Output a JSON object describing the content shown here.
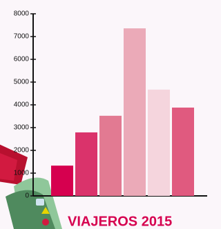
{
  "chart_data": {
    "type": "bar",
    "title": "VIAJEROS 2015",
    "categories": [
      null,
      null,
      null,
      null,
      null,
      null
    ],
    "values": [
      1330,
      2790,
      3520,
      7360,
      4670,
      3880
    ],
    "colors": [
      "#d6004f",
      "#da336b",
      "#e27a92",
      "#ebaab8",
      "#f5d5dd",
      "#e05a7f"
    ],
    "ylim": [
      0,
      8000
    ],
    "yticks": [
      0,
      1000,
      2000,
      3000,
      4000,
      5000,
      6000,
      7000,
      8000
    ]
  }
}
